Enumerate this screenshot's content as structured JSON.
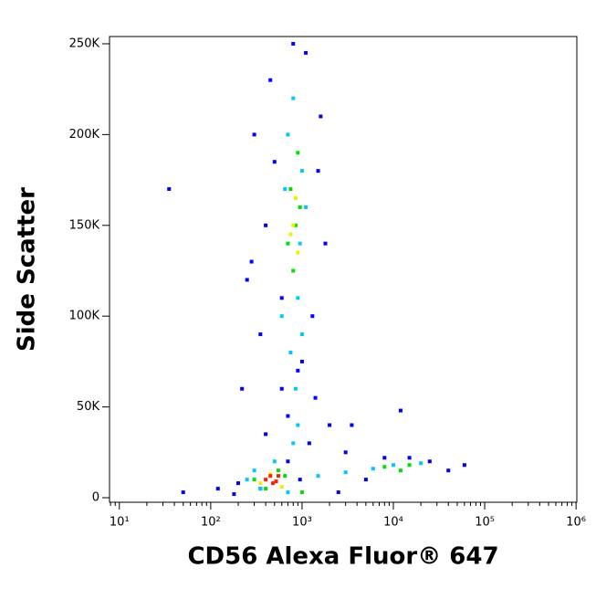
{
  "chart_data": {
    "type": "scatter",
    "xlabel": "CD56 Alexa Fluor® 647",
    "ylabel": "Side Scatter",
    "xscale": "log",
    "xlim": [
      7.8,
      1020000
    ],
    "ylim": [
      -2500,
      254000
    ],
    "xticks": [
      {
        "value": 10,
        "label": "10¹"
      },
      {
        "value": 100,
        "label": "10²"
      },
      {
        "value": 1000,
        "label": "10³"
      },
      {
        "value": 10000,
        "label": "10⁴"
      },
      {
        "value": 100000,
        "label": "10⁵"
      },
      {
        "value": 1000000,
        "label": "10⁶"
      }
    ],
    "yticks": [
      0,
      {
        "value": 50000,
        "label": "50K"
      },
      {
        "value": 100000,
        "label": "100K"
      },
      {
        "value": 150000,
        "label": "150K"
      },
      {
        "value": 200000,
        "label": "200K"
      },
      {
        "value": 250000,
        "label": "250K"
      }
    ],
    "series": [
      {
        "color": "#0000ff",
        "x": [
          300,
          450,
          1500,
          250,
          350,
          1800,
          600,
          1400,
          2000,
          400,
          700,
          1200,
          350,
          2500,
          5000,
          800,
          1100,
          35,
          50,
          120,
          180,
          200,
          3000,
          8000,
          15000,
          25000,
          40000,
          60000,
          400,
          600,
          900,
          1300,
          280,
          220,
          1600,
          3500,
          12000,
          700,
          500,
          1000,
          950
        ],
        "values": [
          200000,
          230000,
          180000,
          120000,
          90000,
          140000,
          60000,
          55000,
          40000,
          35000,
          45000,
          30000,
          5000,
          3000,
          10000,
          250000,
          245000,
          170000,
          3000,
          5000,
          2000,
          8000,
          25000,
          22000,
          22000,
          20000,
          15000,
          18000,
          150000,
          110000,
          70000,
          100000,
          130000,
          60000,
          210000,
          40000,
          48000,
          20000,
          185000,
          75000,
          10000
        ]
      },
      {
        "color": "#00c8ff",
        "x": [
          600,
          700,
          800,
          900,
          1000,
          1100,
          750,
          850,
          650,
          950,
          300,
          350,
          500,
          700,
          1500,
          3000,
          6000,
          10000,
          20000,
          900,
          800,
          1000,
          250
        ],
        "values": [
          100000,
          200000,
          220000,
          110000,
          180000,
          160000,
          80000,
          60000,
          170000,
          140000,
          15000,
          5000,
          20000,
          3000,
          12000,
          14000,
          16000,
          18000,
          19000,
          40000,
          30000,
          90000,
          10000
        ]
      },
      {
        "color": "#00e000",
        "x": [
          750,
          850,
          900,
          800,
          700,
          950,
          400,
          550,
          300,
          8000,
          12000,
          15000,
          650,
          1000
        ],
        "values": [
          170000,
          150000,
          190000,
          125000,
          140000,
          160000,
          5000,
          15000,
          10000,
          17000,
          15000,
          18000,
          12000,
          3000
        ]
      },
      {
        "color": "#f0f000",
        "x": [
          800,
          850,
          900,
          450,
          350,
          600,
          750
        ],
        "values": [
          150000,
          165000,
          135000,
          13000,
          8000,
          6000,
          145000
        ]
      },
      {
        "color": "#ff2000",
        "x": [
          400,
          480,
          550,
          450,
          520
        ],
        "values": [
          10000,
          8000,
          12000,
          12000,
          9000
        ]
      }
    ]
  }
}
